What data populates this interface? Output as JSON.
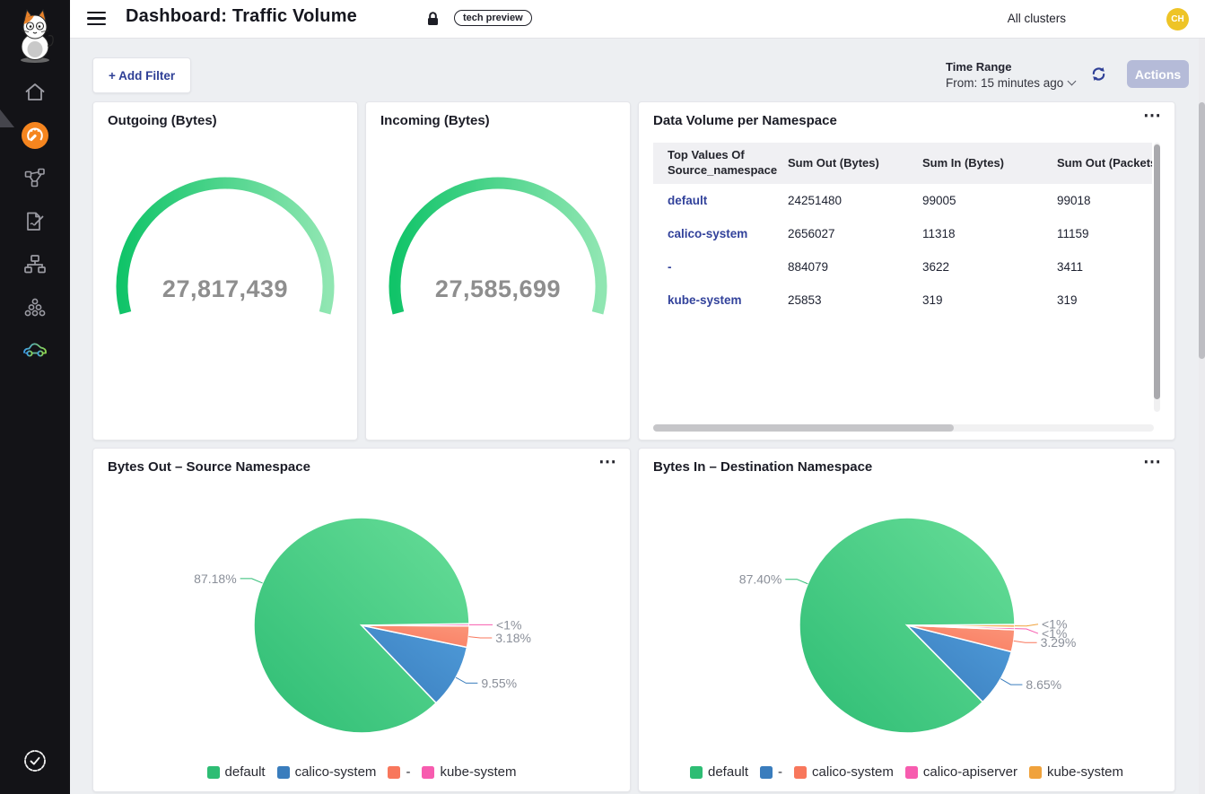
{
  "header": {
    "title": "Dashboard: Traffic Volume",
    "badge_label": "tech preview",
    "clusters_label": "All clusters",
    "avatar_initials": "CH"
  },
  "toolbar": {
    "add_filter_label": "+ Add Filter",
    "time_range_title": "Time Range",
    "time_range_value": "From: 15 minutes ago",
    "actions_label": "Actions"
  },
  "ui": {
    "ellipsis_icon": "⋯",
    "accent_indigo": "#2e3f96",
    "sidebar_active_color": "#f5851f",
    "avatar_color": "#eec427"
  },
  "sidebar_icons": [
    "calico-cat-logo",
    "home-icon",
    "dashboard-gauge-icon",
    "service-graph-icon",
    "policies-icon",
    "network-icon",
    "workloads-icon",
    "car-icon",
    "verified-badge-icon"
  ],
  "chart_data": [
    {
      "type": "gauge",
      "title": "Outgoing (Bytes)",
      "value": 27817439,
      "display_value": "27,817,439",
      "arc_span_degrees": 210,
      "colors": [
        "#11c469",
        "#90e6b2"
      ]
    },
    {
      "type": "gauge",
      "title": "Incoming (Bytes)",
      "value": 27585699,
      "display_value": "27,585,699",
      "arc_span_degrees": 210,
      "colors": [
        "#11c469",
        "#90e6b2"
      ]
    },
    {
      "type": "pie",
      "title": "Bytes Out – Source Namespace",
      "legend_position": "bottom",
      "slices": [
        {
          "label": "default",
          "pct": 87.18,
          "pct_label": "87.18%",
          "color": "#2ebd74",
          "color2": "#67dd98"
        },
        {
          "label": "calico-system",
          "pct": 9.55,
          "pct_label": "9.55%",
          "color": "#3a7dbd",
          "color2": "#4f9bd9"
        },
        {
          "label": "-",
          "pct": 3.18,
          "pct_label": "3.18%",
          "color": "#f8775c",
          "color2": "#fb9579"
        },
        {
          "label": "kube-system",
          "pct": 0.09,
          "pct_label": "<1%",
          "color": "#f75caf",
          "color2": "#fa86c5"
        }
      ]
    },
    {
      "type": "pie",
      "title": "Bytes In – Destination Namespace",
      "legend_position": "bottom",
      "slices": [
        {
          "label": "default",
          "pct": 87.4,
          "pct_label": "87.40%",
          "color": "#2ebd74",
          "color2": "#67dd98"
        },
        {
          "label": "-",
          "pct": 8.65,
          "pct_label": "8.65%",
          "color": "#3a7dbd",
          "color2": "#4f9bd9"
        },
        {
          "label": "calico-system",
          "pct": 3.29,
          "pct_label": "3.29%",
          "color": "#f8775c",
          "color2": "#fb9579"
        },
        {
          "label": "calico-apiserver",
          "pct": 0.35,
          "pct_label": "<1%",
          "color": "#f75caf",
          "color2": "#fa86c5",
          "label_dy": 5
        },
        {
          "label": "kube-system",
          "pct": 0.45,
          "pct_label": "<1%",
          "color": "#f0a23c",
          "color2": "#f6bc66",
          "label_dy": -2
        }
      ]
    },
    {
      "type": "table",
      "title": "Data Volume per Namespace",
      "columns": [
        "Top Values Of Source_namespace",
        "Sum Out (Bytes)",
        "Sum In (Bytes)",
        "Sum Out (Packets)"
      ],
      "rows": [
        [
          "default",
          "24251480",
          "99005",
          "99018"
        ],
        [
          "calico-system",
          "2656027",
          "11318",
          "11159"
        ],
        [
          "-",
          "884079",
          "3622",
          "3411"
        ],
        [
          "kube-system",
          "25853",
          "319",
          "319"
        ]
      ]
    }
  ]
}
